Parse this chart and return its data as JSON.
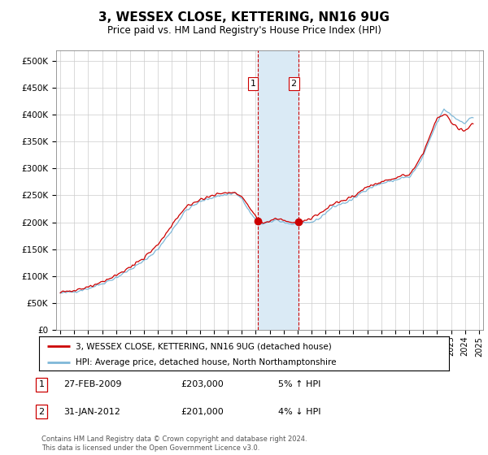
{
  "title": "3, WESSEX CLOSE, KETTERING, NN16 9UG",
  "subtitle": "Price paid vs. HM Land Registry's House Price Index (HPI)",
  "legend_line1": "3, WESSEX CLOSE, KETTERING, NN16 9UG (detached house)",
  "legend_line2": "HPI: Average price, detached house, North Northamptonshire",
  "footer": "Contains HM Land Registry data © Crown copyright and database right 2024.\nThis data is licensed under the Open Government Licence v3.0.",
  "sale1_date": "27-FEB-2009",
  "sale1_price": "£203,000",
  "sale1_hpi": "5% ↑ HPI",
  "sale2_date": "31-JAN-2012",
  "sale2_price": "£201,000",
  "sale2_hpi": "4% ↓ HPI",
  "hpi_color": "#7fb8d8",
  "price_color": "#cc0000",
  "highlight_color": "#daeaf5",
  "background_color": "#ffffff",
  "grid_color": "#cccccc",
  "sale1_x": 2009.15,
  "sale2_x": 2012.08,
  "ylim_min": 0,
  "ylim_max": 520000,
  "xlim_min": 1994.7,
  "xlim_max": 2025.3,
  "yticks": [
    0,
    50000,
    100000,
    150000,
    200000,
    250000,
    300000,
    350000,
    400000,
    450000,
    500000
  ]
}
